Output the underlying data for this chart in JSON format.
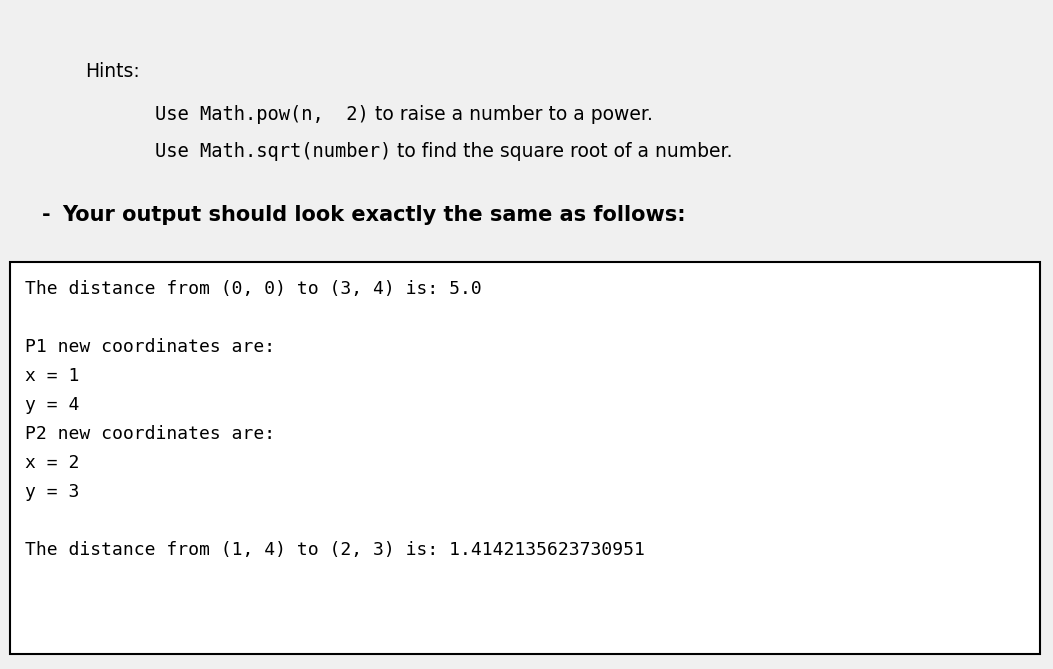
{
  "background_color": "#f0f0f0",
  "content_bg": "#ffffff",
  "hints_title": "Hints:",
  "hints_line1_full": "Use Math.pow(n,  2) to raise a number to a power.",
  "hints_line1_code": "Use Math.pow(n,  2)",
  "hints_line1_normal": " to raise a number to a power.",
  "hints_line2_full": "Use Math.sqrt(number) to find the square root of a number.",
  "hints_line2_code": "Use Math.sqrt(number)",
  "hints_line2_normal": " to find the square root of a number.",
  "bullet_text": "Your output should look exactly the same as follows:",
  "terminal_lines": [
    "The distance from (0, 0) to (3, 4) is: 5.0",
    "",
    "P1 new coordinates are:",
    "x = 1",
    "y = 4",
    "P2 new coordinates are:",
    "x = 2",
    "y = 3",
    "",
    "The distance from (1, 4) to (2, 3) is: 1.4142135623730951"
  ],
  "terminal_font_size": 13,
  "header_font_size": 13.5,
  "bullet_font_size": 15,
  "hints_title_font_size": 13.5,
  "fig_width": 10.53,
  "fig_height": 6.69,
  "dpi": 100
}
